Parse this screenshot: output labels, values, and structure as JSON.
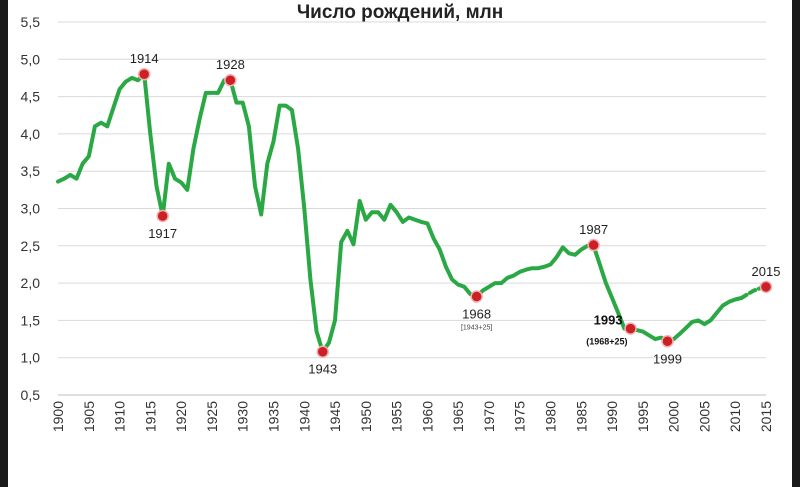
{
  "chart_data": {
    "type": "line",
    "title": "Число рождений, млн",
    "xlabel": "",
    "ylabel": "",
    "xlim": [
      1900,
      2015
    ],
    "ylim": [
      0.5,
      5.5
    ],
    "y_ticks": [
      "0,5",
      "1,0",
      "1,5",
      "2,0",
      "2,5",
      "3,0",
      "3,5",
      "4,0",
      "4,5",
      "5,0",
      "5,5"
    ],
    "x_ticks": [
      "1900",
      "1905",
      "1910",
      "1915",
      "1920",
      "1925",
      "1930",
      "1935",
      "1940",
      "1945",
      "1950",
      "1955",
      "1960",
      "1965",
      "1970",
      "1975",
      "1980",
      "1985",
      "1990",
      "1995",
      "2000",
      "2005",
      "2010",
      "2015"
    ],
    "grid": "horizontal",
    "series": [
      {
        "color": "#2aa844",
        "x": [
          1900,
          1901,
          1902,
          1903,
          1904,
          1905,
          1906,
          1907,
          1908,
          1909,
          1910,
          1911,
          1912,
          1913,
          1914,
          1915,
          1916,
          1917,
          1918,
          1919,
          1920,
          1921,
          1922,
          1923,
          1924,
          1925,
          1926,
          1927,
          1928,
          1929,
          1930,
          1931,
          1932,
          1933,
          1934,
          1935,
          1936,
          1937,
          1938,
          1939,
          1940,
          1941,
          1942,
          1943,
          1944,
          1945,
          1946,
          1947,
          1948,
          1949,
          1950,
          1951,
          1952,
          1953,
          1954,
          1955,
          1956,
          1957,
          1958,
          1959,
          1960,
          1961,
          1962,
          1963,
          1964,
          1965,
          1966,
          1967,
          1968,
          1969,
          1970,
          1971,
          1972,
          1973,
          1974,
          1975,
          1976,
          1977,
          1978,
          1979,
          1980,
          1981,
          1982,
          1983,
          1984,
          1985,
          1986,
          1987,
          1988,
          1989,
          1990,
          1991,
          1992,
          1993,
          1994,
          1995,
          1996,
          1997,
          1998,
          1999,
          2000,
          2001,
          2002,
          2003,
          2004,
          2005,
          2006,
          2007,
          2008,
          2009,
          2010,
          2011
        ],
        "y": [
          3.36,
          3.4,
          3.45,
          3.4,
          3.6,
          3.7,
          4.1,
          4.15,
          4.1,
          4.35,
          4.6,
          4.7,
          4.75,
          4.72,
          4.8,
          4.0,
          3.3,
          2.9,
          3.6,
          3.4,
          3.35,
          3.25,
          3.8,
          4.2,
          4.55,
          4.55,
          4.55,
          4.72,
          4.72,
          4.42,
          4.42,
          4.1,
          3.3,
          2.92,
          3.6,
          3.9,
          4.38,
          4.38,
          4.32,
          3.8,
          3.0,
          2.05,
          1.35,
          1.08,
          1.2,
          1.5,
          2.55,
          2.7,
          2.52,
          3.1,
          2.85,
          2.95,
          2.95,
          2.85,
          3.05,
          2.95,
          2.82,
          2.88,
          2.85,
          2.82,
          2.8,
          2.6,
          2.45,
          2.22,
          2.05,
          1.98,
          1.95,
          1.85,
          1.82,
          1.9,
          1.95,
          2.0,
          2.0,
          2.07,
          2.1,
          2.15,
          2.18,
          2.2,
          2.2,
          2.22,
          2.25,
          2.35,
          2.48,
          2.4,
          2.38,
          2.45,
          2.5,
          2.5,
          2.25,
          2.0,
          1.8,
          1.6,
          1.39,
          1.39,
          1.37,
          1.35,
          1.3,
          1.25,
          1.27,
          1.22,
          1.25,
          1.32,
          1.4,
          1.48,
          1.5,
          1.45,
          1.5,
          1.6,
          1.7,
          1.75,
          1.78,
          1.8
        ]
      },
      {
        "color": "#2aa844",
        "style": "dashed",
        "x": [
          2011,
          2012,
          2013,
          2014,
          2015
        ],
        "y": [
          1.8,
          1.85,
          1.9,
          1.93,
          1.95
        ]
      }
    ],
    "points": [
      {
        "year": 1914,
        "value": 4.8,
        "label": "1914",
        "pos": "above"
      },
      {
        "year": 1917,
        "value": 2.9,
        "label": "1917",
        "pos": "below"
      },
      {
        "year": 1928,
        "value": 4.72,
        "label": "1928",
        "pos": "above"
      },
      {
        "year": 1943,
        "value": 1.08,
        "label": "1943",
        "pos": "below"
      },
      {
        "year": 1968,
        "value": 1.82,
        "label": "1968",
        "sub": "[1943+25]",
        "pos": "below"
      },
      {
        "year": 1987,
        "value": 2.51,
        "label": "1987",
        "pos": "above"
      },
      {
        "year": 1993,
        "value": 1.39,
        "label": "1993",
        "sub": "(1968+25)",
        "pos": "left",
        "bold": true
      },
      {
        "year": 1999,
        "value": 1.22,
        "label": "1999",
        "pos": "below"
      },
      {
        "year": 2015,
        "value": 1.95,
        "label": "2015",
        "pos": "above"
      }
    ],
    "marker_color": "#cc1f26"
  }
}
